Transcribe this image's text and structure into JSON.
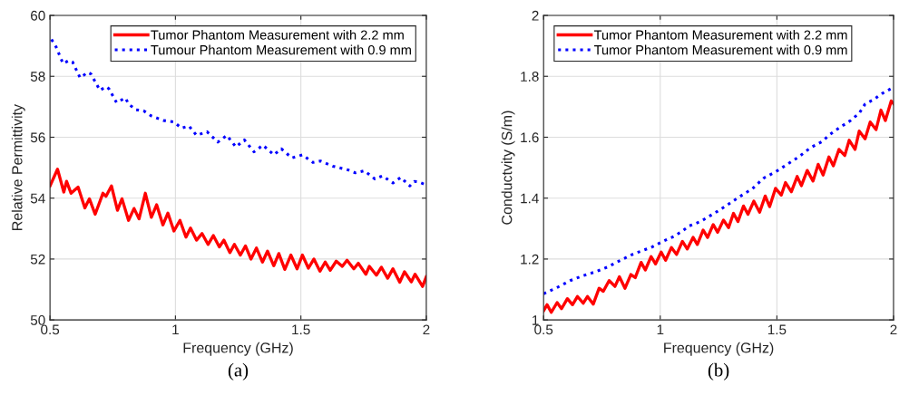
{
  "chart_data": [
    {
      "type": "line",
      "xlabel": "Frequency (GHz)",
      "ylabel": "Relative Permittivity",
      "annotations": [
        "(a)"
      ],
      "xlim": [
        0.5,
        2
      ],
      "xticks": [
        0.5,
        1,
        1.5,
        2
      ],
      "ylim": [
        50,
        60
      ],
      "yticks": [
        50,
        52,
        54,
        56,
        58,
        60
      ],
      "grid": true,
      "legend": "top right",
      "series": [
        {
          "name": "Tumor Phantom Measurement with 2.2 mm",
          "color": "#ff0000",
          "line_style": "solid",
          "x": [
            0.5,
            0.53,
            0.555,
            0.566,
            0.584,
            0.612,
            0.639,
            0.657,
            0.68,
            0.711,
            0.723,
            0.745,
            0.769,
            0.787,
            0.813,
            0.835,
            0.855,
            0.88,
            0.904,
            0.925,
            0.95,
            0.97,
            0.994,
            1.018,
            1.042,
            1.06,
            1.084,
            1.106,
            1.13,
            1.151,
            1.175,
            1.193,
            1.217,
            1.235,
            1.259,
            1.279,
            1.301,
            1.323,
            1.347,
            1.367,
            1.392,
            1.412,
            1.436,
            1.46,
            1.485,
            1.506,
            1.53,
            1.552,
            1.576,
            1.597,
            1.617,
            1.641,
            1.665,
            1.684,
            1.711,
            1.729,
            1.759,
            1.773,
            1.801,
            1.821,
            1.846,
            1.867,
            1.894,
            1.913,
            1.94,
            1.955,
            1.985,
            2.0
          ],
          "values": [
            54.4,
            54.95,
            54.2,
            54.55,
            54.16,
            54.36,
            53.68,
            53.98,
            53.47,
            54.16,
            54.06,
            54.4,
            53.6,
            53.98,
            53.27,
            53.66,
            53.32,
            54.16,
            53.37,
            53.78,
            53.12,
            53.51,
            52.92,
            53.27,
            52.72,
            53.02,
            52.62,
            52.84,
            52.48,
            52.77,
            52.4,
            52.62,
            52.21,
            52.48,
            52.13,
            52.43,
            52.0,
            52.36,
            51.9,
            52.26,
            51.78,
            52.18,
            51.66,
            52.13,
            51.68,
            52.13,
            51.7,
            52.0,
            51.6,
            51.9,
            51.63,
            51.93,
            51.76,
            51.96,
            51.68,
            51.86,
            51.5,
            51.76,
            51.47,
            51.73,
            51.37,
            51.68,
            51.24,
            51.58,
            51.25,
            51.5,
            51.1,
            51.42
          ]
        },
        {
          "name": "Tumour Phantom Measurement with 0.9 mm",
          "color": "#0000ff",
          "line_style": "dotted",
          "x": [
            0.506,
            0.524,
            0.552,
            0.576,
            0.59,
            0.62,
            0.65,
            0.663,
            0.699,
            0.723,
            0.735,
            0.765,
            0.801,
            0.813,
            0.843,
            0.873,
            0.904,
            0.952,
            0.994,
            1.024,
            1.054,
            1.084,
            1.126,
            1.169,
            1.205,
            1.241,
            1.275,
            1.313,
            1.349,
            1.392,
            1.422,
            1.464,
            1.506,
            1.548,
            1.578,
            1.627,
            1.687,
            1.717,
            1.753,
            1.795,
            1.825,
            1.867,
            1.898,
            1.934,
            1.952,
            1.97,
            2.0
          ],
          "values": [
            59.21,
            58.97,
            58.42,
            58.52,
            58.47,
            57.95,
            58.13,
            58.08,
            57.54,
            57.66,
            57.59,
            57.14,
            57.29,
            57.09,
            56.9,
            56.87,
            56.7,
            56.55,
            56.5,
            56.3,
            56.37,
            56.06,
            56.18,
            55.84,
            56.06,
            55.68,
            55.91,
            55.52,
            55.74,
            55.42,
            55.62,
            55.32,
            55.42,
            55.17,
            55.22,
            55.05,
            54.93,
            54.83,
            54.9,
            54.63,
            54.73,
            54.5,
            54.68,
            54.4,
            54.55,
            54.53,
            54.43
          ]
        }
      ]
    },
    {
      "type": "line",
      "xlabel": "Frequency (GHz)",
      "ylabel": "Conductvity (S/m)",
      "annotations": [
        "(b)"
      ],
      "xlim": [
        0.5,
        2
      ],
      "xticks": [
        0.5,
        1,
        1.5,
        2
      ],
      "ylim": [
        1,
        2
      ],
      "yticks": [
        1,
        1.2,
        1.4,
        1.6,
        1.8,
        2
      ],
      "grid": true,
      "legend": "top left",
      "series": [
        {
          "name": "Tumor Phantom Measurement with 2.2 mm",
          "color": "#ff0000",
          "line_style": "solid",
          "x": [
            0.5,
            0.515,
            0.533,
            0.558,
            0.577,
            0.602,
            0.624,
            0.645,
            0.67,
            0.688,
            0.713,
            0.738,
            0.756,
            0.781,
            0.806,
            0.825,
            0.849,
            0.874,
            0.893,
            0.918,
            0.936,
            0.961,
            0.98,
            1.004,
            1.023,
            1.048,
            1.07,
            1.095,
            1.116,
            1.141,
            1.159,
            1.184,
            1.203,
            1.227,
            1.246,
            1.271,
            1.293,
            1.314,
            1.333,
            1.357,
            1.376,
            1.401,
            1.426,
            1.45,
            1.469,
            1.494,
            1.519,
            1.537,
            1.562,
            1.587,
            1.605,
            1.63,
            1.655,
            1.677,
            1.698,
            1.723,
            1.742,
            1.766,
            1.791,
            1.81,
            1.835,
            1.853,
            1.878,
            1.9,
            1.925,
            1.946,
            1.965,
            1.99,
            2.0
          ],
          "values": [
            1.03,
            1.05,
            1.025,
            1.057,
            1.037,
            1.07,
            1.05,
            1.077,
            1.055,
            1.077,
            1.052,
            1.104,
            1.094,
            1.129,
            1.11,
            1.142,
            1.104,
            1.149,
            1.139,
            1.189,
            1.164,
            1.208,
            1.184,
            1.223,
            1.196,
            1.238,
            1.215,
            1.258,
            1.233,
            1.271,
            1.248,
            1.295,
            1.271,
            1.313,
            1.288,
            1.328,
            1.303,
            1.35,
            1.323,
            1.374,
            1.347,
            1.39,
            1.354,
            1.407,
            1.372,
            1.432,
            1.41,
            1.451,
            1.421,
            1.471,
            1.441,
            1.491,
            1.456,
            1.511,
            1.476,
            1.535,
            1.506,
            1.56,
            1.54,
            1.59,
            1.56,
            1.62,
            1.595,
            1.65,
            1.625,
            1.689,
            1.655,
            1.719,
            1.71
          ]
        },
        {
          "name": "Tumor Phantom Measurement with 0.9 mm",
          "color": "#0000ff",
          "line_style": "dotted",
          "x": [
            0.5,
            0.564,
            0.614,
            0.664,
            0.726,
            0.775,
            0.812,
            0.874,
            0.924,
            0.961,
            1.011,
            1.06,
            1.097,
            1.122,
            1.172,
            1.209,
            1.246,
            1.296,
            1.345,
            1.395,
            1.444,
            1.494,
            1.544,
            1.593,
            1.643,
            1.692,
            1.729,
            1.766,
            1.816,
            1.853,
            1.878,
            1.915,
            1.952,
            2.0
          ],
          "values": [
            1.086,
            1.109,
            1.129,
            1.144,
            1.159,
            1.174,
            1.189,
            1.213,
            1.228,
            1.238,
            1.258,
            1.275,
            1.293,
            1.308,
            1.323,
            1.34,
            1.357,
            1.382,
            1.407,
            1.431,
            1.466,
            1.486,
            1.511,
            1.535,
            1.565,
            1.585,
            1.61,
            1.63,
            1.655,
            1.679,
            1.709,
            1.724,
            1.744,
            1.764
          ]
        }
      ]
    }
  ]
}
